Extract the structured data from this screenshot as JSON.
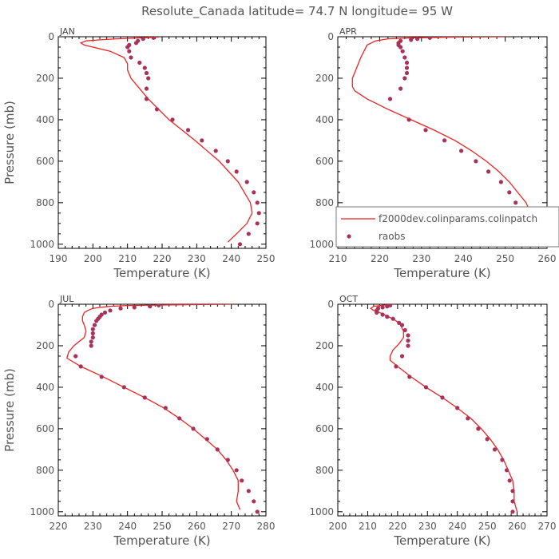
{
  "title": "Resolute_Canada  latitude= 74.7 N longitude= 95 W",
  "colors": {
    "model": "#ee2222",
    "obs": "#a8325a",
    "axis": "#000000",
    "text": "#555555"
  },
  "legend": {
    "model_label": "f2000dev.colinparams.colinpatch",
    "obs_label": "raobs",
    "panel": "APR"
  },
  "chart_data": [
    {
      "type": "line",
      "panel": "JAN",
      "xlabel": "Temperature (K)",
      "ylabel": "Pressure (mb)",
      "xlim": [
        190,
        250
      ],
      "ylim": [
        1020,
        0
      ],
      "xticks": [
        190,
        200,
        210,
        220,
        230,
        240,
        250
      ],
      "yticks": [
        0,
        200,
        400,
        600,
        800,
        1000
      ],
      "series": [
        {
          "name": "f2000dev.colinparams.colinpatch",
          "style": "line",
          "p": [
            2,
            5,
            10,
            15,
            20,
            30,
            40,
            50,
            70,
            100,
            130,
            160,
            180,
            200,
            240,
            300,
            400,
            500,
            600,
            700,
            800,
            850,
            900,
            950,
            990
          ],
          "t": [
            219,
            214,
            207,
            202,
            198,
            196.5,
            197.5,
            200,
            205,
            209,
            210,
            210,
            210.5,
            211,
            213,
            216,
            222,
            229.5,
            236.5,
            242,
            245.5,
            246,
            244.5,
            241.5,
            239
          ]
        },
        {
          "name": "raobs",
          "style": "points",
          "p": [
            5,
            10,
            20,
            30,
            40,
            50,
            70,
            100,
            125,
            150,
            175,
            200,
            250,
            300,
            350,
            400,
            450,
            500,
            550,
            600,
            650,
            700,
            750,
            800,
            850,
            900,
            950,
            1000
          ],
          "t": [
            217.5,
            214.5,
            213,
            212.5,
            210.5,
            210,
            210.5,
            211,
            213.5,
            215,
            215.5,
            216,
            215.5,
            215.5,
            218.5,
            223,
            227.5,
            231.5,
            235.5,
            239,
            241.5,
            244.5,
            246.5,
            247.5,
            248,
            247.5,
            245,
            242.5
          ]
        }
      ]
    },
    {
      "type": "line",
      "panel": "APR",
      "xlabel": "Temperature (K)",
      "ylabel": "Pressure (mb)",
      "xlim": [
        210,
        260
      ],
      "ylim": [
        1020,
        0
      ],
      "xticks": [
        210,
        220,
        230,
        240,
        250,
        260
      ],
      "yticks": [
        0,
        200,
        400,
        600,
        800,
        1000
      ],
      "series": [
        {
          "name": "f2000dev.colinparams.colinpatch",
          "style": "line",
          "p": [
            0,
            2,
            5,
            10,
            20,
            40,
            60,
            80,
            100,
            150,
            200,
            240,
            260,
            300,
            350,
            400,
            450,
            500,
            550,
            600,
            650,
            700,
            750,
            800,
            850,
            900,
            950,
            990
          ],
          "t": [
            250,
            238,
            228,
            222,
            219,
            217,
            216.5,
            216,
            215.5,
            214.5,
            213.5,
            213.5,
            214,
            217,
            222,
            227.5,
            233,
            238,
            242,
            245.5,
            248.5,
            251,
            253,
            255,
            256,
            255.5,
            254,
            253
          ]
        },
        {
          "name": "raobs",
          "style": "points",
          "p": [
            5,
            10,
            15,
            20,
            30,
            40,
            50,
            70,
            100,
            125,
            150,
            175,
            200,
            250,
            300,
            400,
            450,
            500,
            550,
            600,
            650,
            700,
            750,
            800,
            850,
            900,
            950,
            1000
          ],
          "t": [
            232,
            229,
            227.5,
            225,
            224.5,
            224.5,
            225,
            225.5,
            226,
            226.5,
            226.5,
            226.5,
            226,
            225,
            222.5,
            227,
            231,
            235.5,
            239.5,
            243,
            246,
            249,
            251,
            252.5,
            253.5,
            254,
            253.5,
            251
          ]
        }
      ]
    },
    {
      "type": "line",
      "panel": "JUL",
      "xlabel": "Temperature (K)",
      "ylabel": "Pressure (mb)",
      "xlim": [
        220,
        280
      ],
      "ylim": [
        1020,
        0
      ],
      "xticks": [
        220,
        230,
        240,
        250,
        260,
        270,
        280
      ],
      "yticks": [
        0,
        200,
        400,
        600,
        800,
        1000
      ],
      "series": [
        {
          "name": "f2000dev.colinparams.colinpatch",
          "style": "line",
          "p": [
            0,
            3,
            6,
            10,
            15,
            20,
            30,
            40,
            60,
            80,
            100,
            130,
            160,
            180,
            200,
            230,
            260,
            300,
            350,
            400,
            450,
            500,
            550,
            600,
            650,
            700,
            750,
            800,
            850,
            900,
            950,
            990
          ],
          "t": [
            270,
            252,
            240,
            235,
            232,
            230,
            228.5,
            227.5,
            227,
            227,
            227.5,
            228,
            227.5,
            226,
            224.5,
            223,
            222.5,
            226.5,
            233,
            239,
            245,
            250.5,
            255,
            259,
            262.5,
            266,
            268.5,
            270.5,
            272,
            272,
            271.5,
            272.5
          ]
        },
        {
          "name": "raobs",
          "style": "points",
          "p": [
            5,
            10,
            15,
            20,
            30,
            40,
            50,
            60,
            70,
            80,
            100,
            120,
            140,
            160,
            180,
            200,
            250,
            300,
            350,
            400,
            450,
            500,
            550,
            600,
            650,
            700,
            750,
            800,
            850,
            900,
            950,
            1000
          ],
          "t": [
            249,
            246.5,
            242,
            238,
            235,
            233.5,
            232.5,
            232,
            231.5,
            231,
            230.5,
            230,
            230,
            230,
            229.5,
            229.5,
            225,
            226.5,
            232.5,
            239,
            245,
            251,
            255,
            259,
            263,
            266,
            269,
            271.5,
            273,
            275,
            276.5,
            277.5
          ]
        }
      ]
    },
    {
      "type": "line",
      "panel": "OCT",
      "xlabel": "Temperature (K)",
      "ylabel": "Pressure (mb)",
      "xlim": [
        200,
        270
      ],
      "ylim": [
        1020,
        0
      ],
      "xticks": [
        200,
        210,
        220,
        230,
        240,
        250,
        260,
        270
      ],
      "yticks": [
        0,
        200,
        400,
        600,
        800,
        1000
      ],
      "series": [
        {
          "name": "f2000dev.colinparams.colinpatch",
          "style": "line",
          "p": [
            0,
            5,
            10,
            20,
            30,
            40,
            60,
            80,
            100,
            130,
            160,
            190,
            220,
            250,
            270,
            300,
            350,
            400,
            450,
            500,
            550,
            600,
            650,
            700,
            750,
            800,
            850,
            900,
            950,
            1000
          ],
          "t": [
            219,
            215,
            212,
            211,
            212,
            214,
            217,
            219.5,
            221,
            222,
            222,
            220.5,
            218.5,
            217.5,
            217.5,
            220,
            224.5,
            229.5,
            235,
            240,
            244.5,
            248,
            251,
            253.5,
            255.5,
            257,
            258.5,
            259,
            259,
            260
          ]
        },
        {
          "name": "raobs",
          "style": "points",
          "p": [
            5,
            10,
            15,
            20,
            30,
            40,
            50,
            60,
            70,
            90,
            100,
            125,
            150,
            175,
            200,
            250,
            300,
            350,
            400,
            450,
            500,
            550,
            600,
            650,
            700,
            750,
            800,
            850,
            900,
            950,
            1000
          ],
          "t": [
            217.5,
            216.5,
            215,
            213.5,
            213,
            213,
            215,
            216.5,
            218.5,
            220.5,
            221.5,
            222.5,
            223.5,
            223.5,
            223.5,
            221.5,
            219.5,
            224,
            229.5,
            235,
            240,
            243.5,
            247,
            250,
            252.5,
            255,
            256.5,
            257.5,
            258.5,
            258.5,
            258.5
          ]
        }
      ]
    }
  ]
}
